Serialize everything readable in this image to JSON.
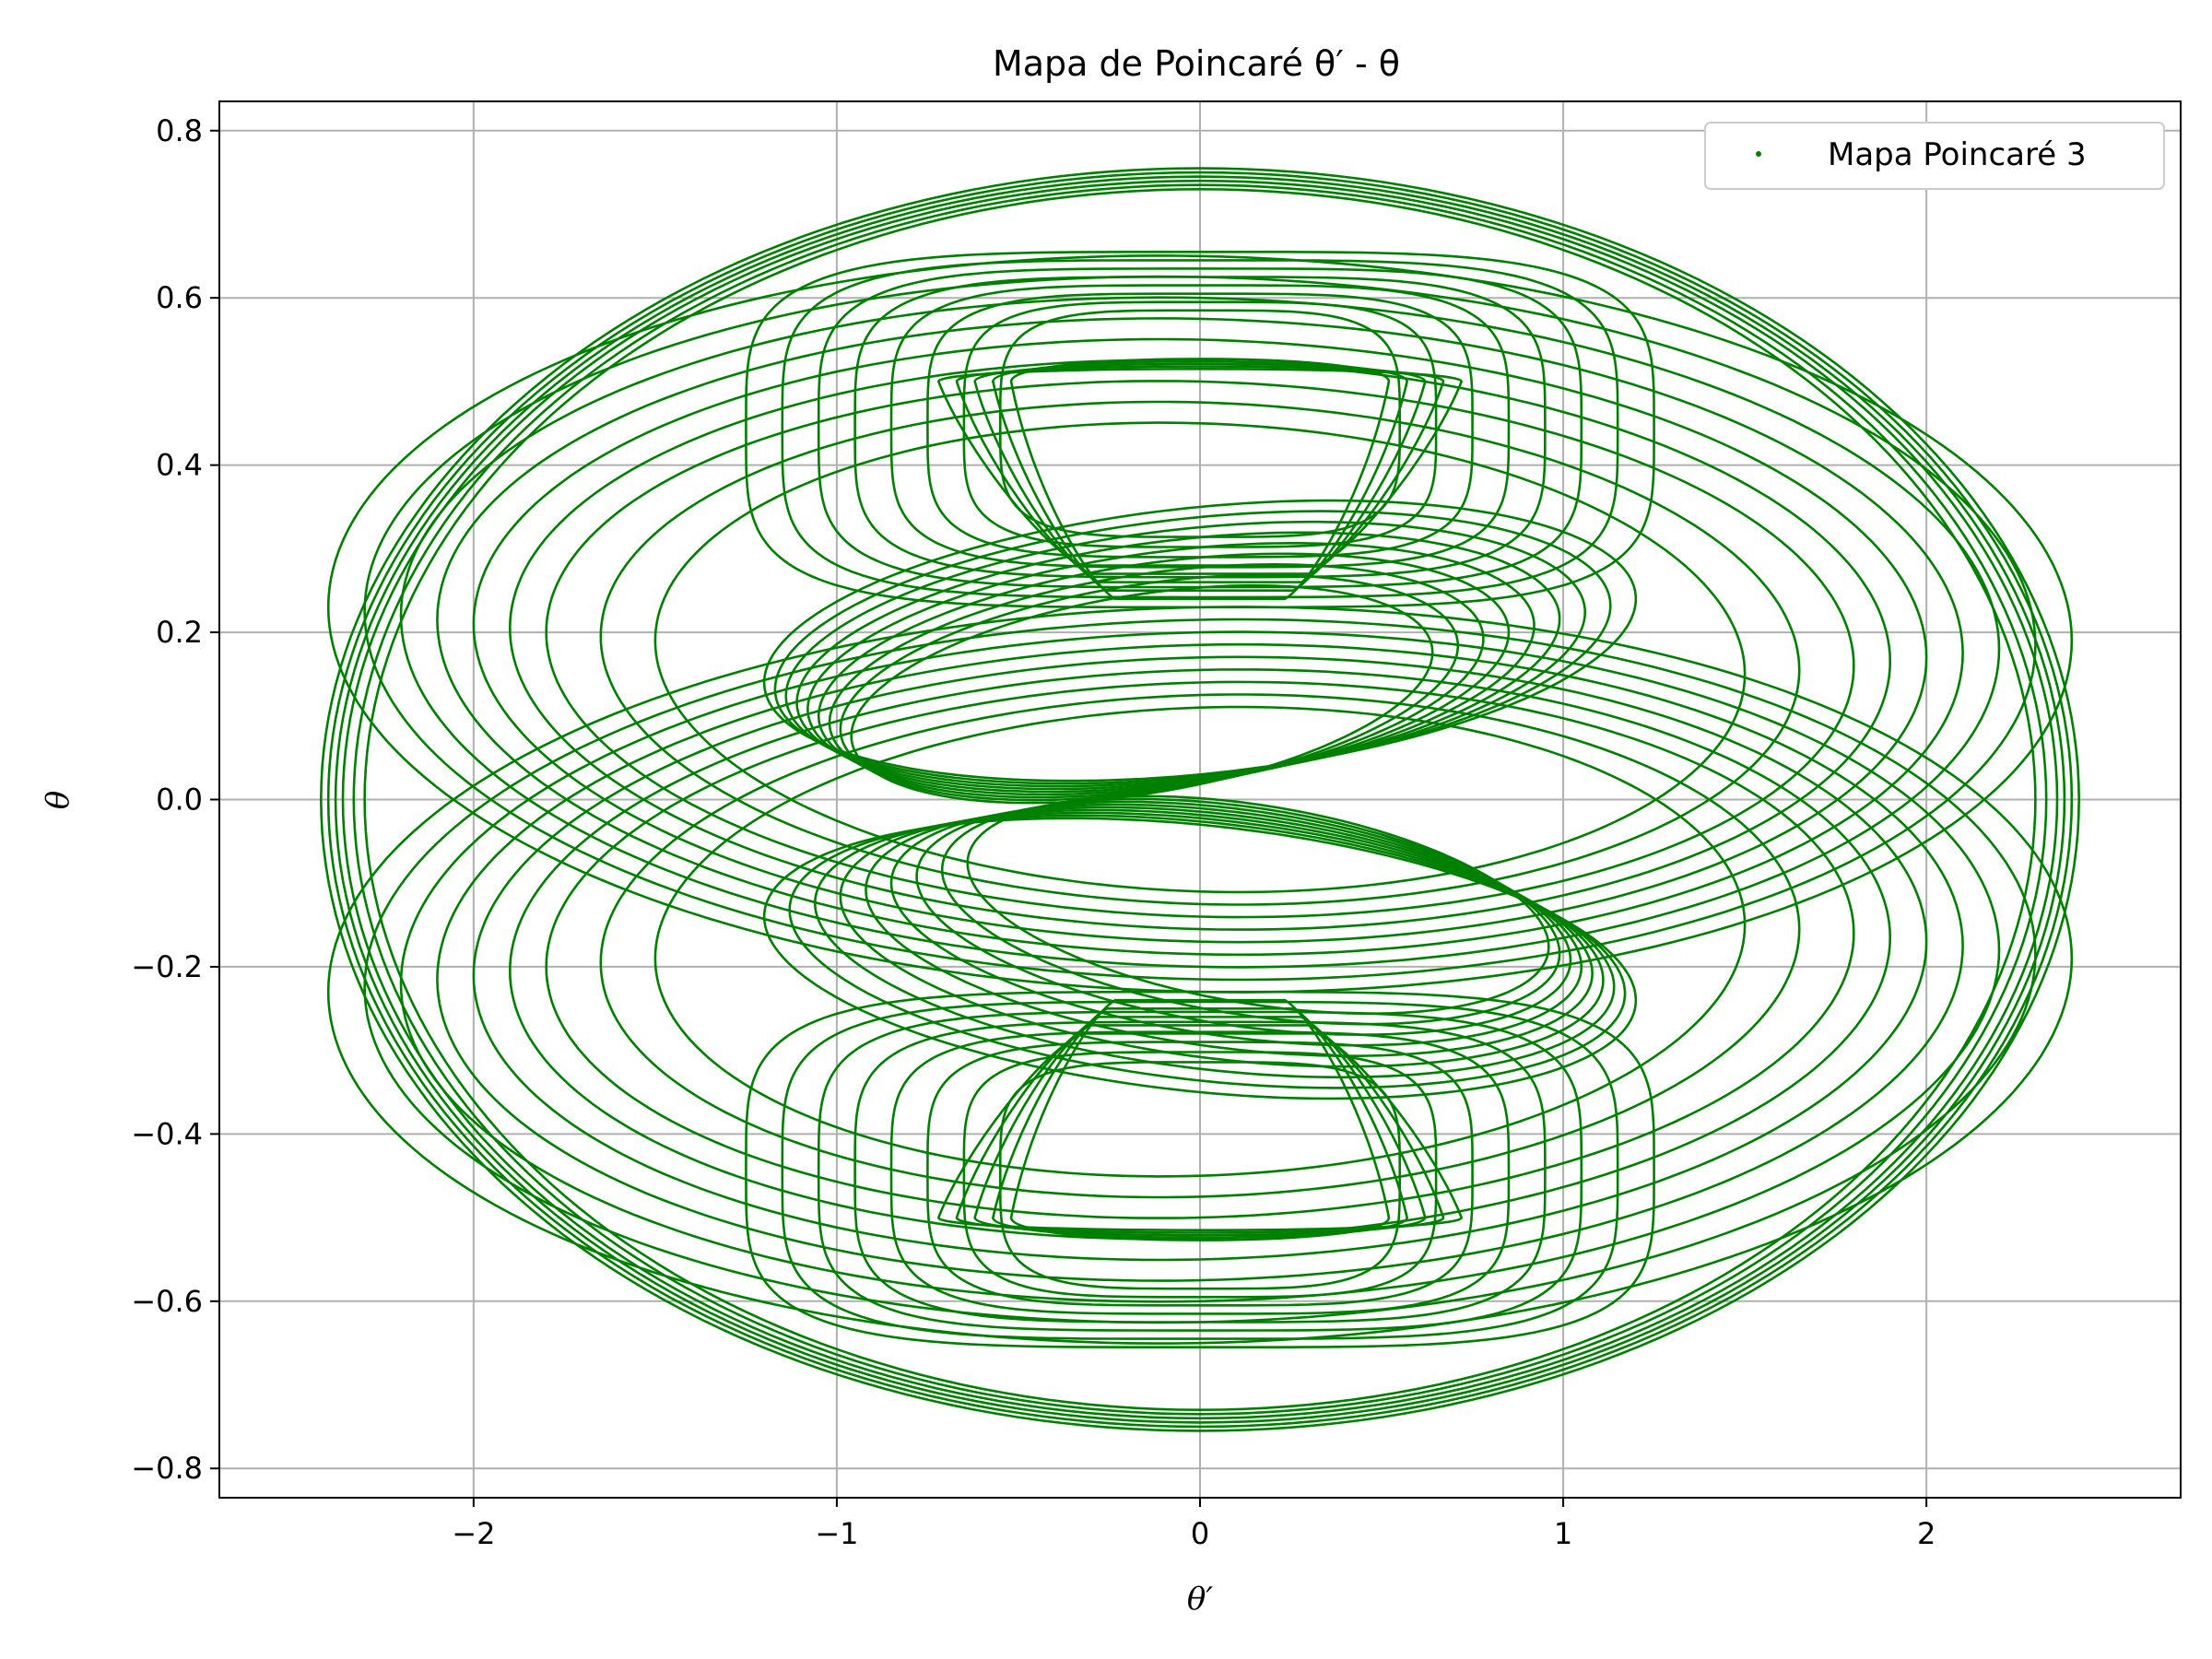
{
  "chart_data": {
    "type": "scatter",
    "title": "Mapa de Poincaré θ′ - θ",
    "xlabel": "θ′",
    "ylabel": "θ",
    "xlim": [
      -2.7,
      2.7
    ],
    "ylim": [
      -0.835,
      0.835
    ],
    "xticks": [
      -2,
      -1,
      0,
      1,
      2
    ],
    "xtick_labels": [
      "−2",
      "−1",
      "0",
      "1",
      "2"
    ],
    "yticks": [
      -0.8,
      -0.6,
      -0.4,
      -0.2,
      0.0,
      0.2,
      0.4,
      0.6,
      0.8
    ],
    "ytick_labels": [
      "−0.8",
      "−0.6",
      "−0.4",
      "−0.2",
      "0.0",
      "0.2",
      "0.4",
      "0.6",
      "0.8"
    ],
    "grid": true,
    "legend": "top-right",
    "series": [
      {
        "name": "Mapa Poincaré 3",
        "color": "#008000",
        "marker": "point",
        "curves": {
          "outer_ellipse": {
            "x_radius": 2.42,
            "y_radius": 0.755,
            "families": [
              {
                "x_radii": [
                  2.42,
                  2.4,
                  2.38,
                  2.36,
                  2.33,
                  2.3
                ],
                "y_radii": [
                  0.755,
                  0.75,
                  0.745,
                  0.74,
                  0.735,
                  0.73
                ]
              }
            ]
          },
          "lobes_upper": {
            "center_y": 0.21,
            "x_radii": [
              2.4,
              2.3,
              2.2,
              2.1,
              2.0,
              1.9,
              1.8,
              1.65,
              1.5
            ],
            "y_radii": [
              0.44,
              0.42,
              0.4,
              0.38,
              0.36,
              0.34,
              0.32,
              0.3,
              0.28
            ]
          },
          "lobes_lower": {
            "center_y": -0.21,
            "x_radii": [
              2.4,
              2.3,
              2.2,
              2.1,
              2.0,
              1.9,
              1.8,
              1.65,
              1.5
            ],
            "y_radii": [
              0.44,
              0.42,
              0.4,
              0.38,
              0.36,
              0.34,
              0.32,
              0.3,
              0.28
            ]
          },
          "inner_upper_ellipses": {
            "center_y": 0.19,
            "x_radii": [
              1.2,
              1.15,
              1.1,
              1.05,
              1.0,
              0.95,
              0.9,
              0.85,
              0.8
            ],
            "y_radii": [
              0.16,
              0.155,
              0.15,
              0.145,
              0.14,
              0.135,
              0.13,
              0.125,
              0.12
            ]
          },
          "inner_lower_ellipses": {
            "center_y": -0.19,
            "x_radii": [
              1.2,
              1.15,
              1.1,
              1.05,
              1.0,
              0.95,
              0.9,
              0.85,
              0.8
            ],
            "y_radii": [
              0.16,
              0.155,
              0.15,
              0.145,
              0.14,
              0.135,
              0.13,
              0.125,
              0.12
            ]
          },
          "upper_cap": {
            "top_y": 0.655,
            "bottom_y": 0.23,
            "x_half_widths": [
              1.25,
              1.15,
              1.05,
              0.95,
              0.85,
              0.75,
              0.65,
              0.55
            ]
          },
          "lower_cap": {
            "top_y": -0.23,
            "bottom_y": -0.655,
            "x_half_widths": [
              1.25,
              1.15,
              1.05,
              0.95,
              0.85,
              0.75,
              0.65,
              0.55
            ]
          },
          "upper_hourglass": {
            "center_y": 0.5,
            "x_half_width": 0.72,
            "y_half_height": 0.02,
            "neck_y": 0.42
          },
          "lower_hourglass": {
            "center_y": -0.5,
            "x_half_width": 0.72,
            "y_half_height": 0.02,
            "neck_y": -0.42
          }
        }
      }
    ]
  }
}
